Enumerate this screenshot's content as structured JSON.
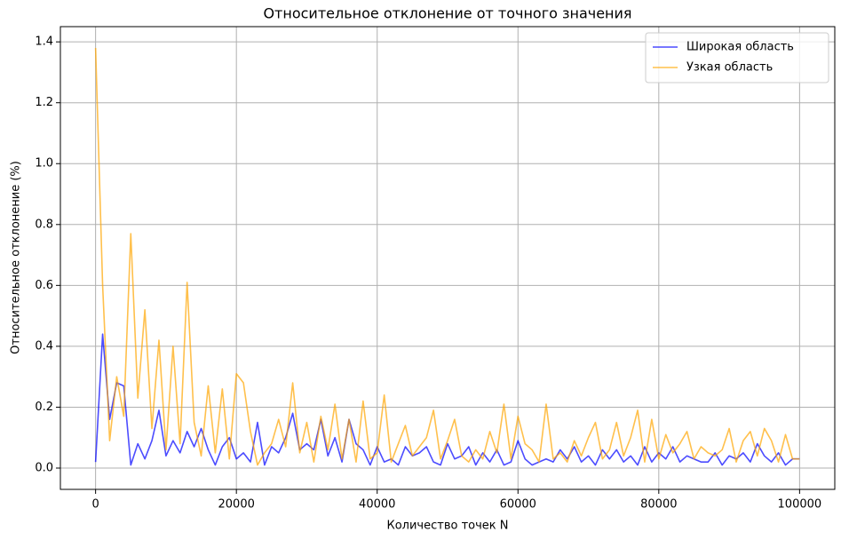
{
  "chart_data": {
    "type": "line",
    "title": "Относительное отклонение от точного значения",
    "x_label": "Количество точек N",
    "y_label": "Относительное отклонение (%)",
    "x": [
      0,
      1000,
      2000,
      3000,
      4000,
      5000,
      6000,
      7000,
      8000,
      9000,
      10000,
      11000,
      12000,
      13000,
      14000,
      15000,
      16000,
      17000,
      18000,
      19000,
      20000,
      21000,
      22000,
      23000,
      24000,
      25000,
      26000,
      27000,
      28000,
      29000,
      30000,
      31000,
      32000,
      33000,
      34000,
      35000,
      36000,
      37000,
      38000,
      39000,
      40000,
      41000,
      42000,
      43000,
      44000,
      45000,
      46000,
      47000,
      48000,
      49000,
      50000,
      51000,
      52000,
      53000,
      54000,
      55000,
      56000,
      57000,
      58000,
      59000,
      60000,
      61000,
      62000,
      63000,
      64000,
      65000,
      66000,
      67000,
      68000,
      69000,
      70000,
      71000,
      72000,
      73000,
      74000,
      75000,
      76000,
      77000,
      78000,
      79000,
      80000,
      81000,
      82000,
      83000,
      84000,
      85000,
      86000,
      87000,
      88000,
      89000,
      90000,
      91000,
      92000,
      93000,
      94000,
      95000,
      96000,
      97000,
      98000,
      99000,
      100000
    ],
    "series": [
      {
        "name": "Широкая область",
        "color": "blue",
        "values": [
          0.02,
          0.44,
          0.16,
          0.28,
          0.27,
          0.01,
          0.08,
          0.03,
          0.09,
          0.19,
          0.04,
          0.09,
          0.05,
          0.12,
          0.07,
          0.13,
          0.06,
          0.01,
          0.07,
          0.1,
          0.03,
          0.05,
          0.02,
          0.15,
          0.01,
          0.07,
          0.05,
          0.1,
          0.18,
          0.06,
          0.08,
          0.06,
          0.16,
          0.04,
          0.1,
          0.02,
          0.16,
          0.08,
          0.06,
          0.01,
          0.07,
          0.02,
          0.03,
          0.01,
          0.07,
          0.04,
          0.05,
          0.07,
          0.02,
          0.01,
          0.08,
          0.03,
          0.04,
          0.07,
          0.01,
          0.05,
          0.02,
          0.06,
          0.01,
          0.02,
          0.09,
          0.03,
          0.01,
          0.02,
          0.03,
          0.02,
          0.06,
          0.03,
          0.07,
          0.02,
          0.04,
          0.01,
          0.06,
          0.03,
          0.06,
          0.02,
          0.04,
          0.01,
          0.07,
          0.02,
          0.05,
          0.03,
          0.07,
          0.02,
          0.04,
          0.03,
          0.02,
          0.02,
          0.05,
          0.01,
          0.04,
          0.03,
          0.05,
          0.02,
          0.08,
          0.04,
          0.02,
          0.05,
          0.01,
          0.03,
          0.03
        ]
      },
      {
        "name": "Узкая область",
        "color": "orange",
        "values": [
          1.38,
          0.6,
          0.09,
          0.3,
          0.17,
          0.77,
          0.23,
          0.52,
          0.13,
          0.42,
          0.06,
          0.4,
          0.08,
          0.61,
          0.15,
          0.04,
          0.27,
          0.05,
          0.26,
          0.03,
          0.31,
          0.28,
          0.12,
          0.01,
          0.05,
          0.08,
          0.16,
          0.07,
          0.28,
          0.05,
          0.15,
          0.02,
          0.17,
          0.06,
          0.21,
          0.03,
          0.16,
          0.02,
          0.22,
          0.03,
          0.05,
          0.24,
          0.02,
          0.08,
          0.14,
          0.04,
          0.07,
          0.1,
          0.19,
          0.03,
          0.09,
          0.16,
          0.04,
          0.02,
          0.06,
          0.03,
          0.12,
          0.05,
          0.21,
          0.03,
          0.17,
          0.08,
          0.06,
          0.02,
          0.21,
          0.03,
          0.05,
          0.02,
          0.09,
          0.04,
          0.1,
          0.15,
          0.03,
          0.06,
          0.15,
          0.04,
          0.1,
          0.19,
          0.02,
          0.16,
          0.03,
          0.11,
          0.05,
          0.08,
          0.12,
          0.03,
          0.07,
          0.05,
          0.04,
          0.06,
          0.13,
          0.02,
          0.09,
          0.12,
          0.04,
          0.13,
          0.09,
          0.02,
          0.11,
          0.03,
          0.03
        ]
      }
    ],
    "xlim": [
      -5000,
      105000
    ],
    "ylim": [
      -0.07,
      1.45
    ],
    "xticks": [
      0,
      20000,
      40000,
      60000,
      80000,
      100000
    ],
    "yticks": [
      {
        "value": 0,
        "label": "0.0"
      },
      0.2,
      0.4,
      0.6,
      0.8,
      {
        "value": 1,
        "label": "1.0"
      },
      1.2,
      1.4
    ],
    "grid": true,
    "legend": "upper right"
  }
}
